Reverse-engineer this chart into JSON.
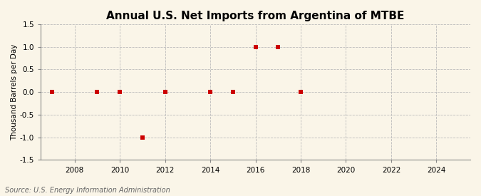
{
  "title": "Annual U.S. Net Imports from Argentina of MTBE",
  "ylabel": "Thousand Barrels per Day",
  "source": "Source: U.S. Energy Information Administration",
  "x_data": [
    2007,
    2009,
    2010,
    2011,
    2012,
    2014,
    2015,
    2016,
    2017,
    2018
  ],
  "y_data": [
    0,
    0,
    0,
    -1,
    0,
    0,
    0,
    1,
    1,
    0
  ],
  "xlim": [
    2006.5,
    2025.5
  ],
  "ylim": [
    -1.5,
    1.5
  ],
  "xticks": [
    2008,
    2010,
    2012,
    2014,
    2016,
    2018,
    2020,
    2022,
    2024
  ],
  "yticks": [
    -1.5,
    -1.0,
    -0.5,
    0.0,
    0.5,
    1.0,
    1.5
  ],
  "marker_color": "#cc0000",
  "marker": "s",
  "marker_size": 4,
  "background_color": "#faf5e8",
  "grid_color": "#bbbbbb",
  "title_fontsize": 11,
  "label_fontsize": 7.5,
  "tick_fontsize": 7.5,
  "source_fontsize": 7,
  "source_color": "#666666"
}
